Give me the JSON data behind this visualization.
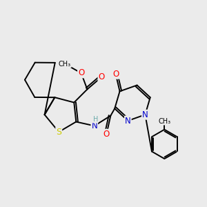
{
  "bg_color": "#ebebeb",
  "bond_color": "#000000",
  "bond_width": 1.4,
  "atom_colors": {
    "O": "#ff0000",
    "N": "#0000cc",
    "S": "#cccc00",
    "H": "#6aabab",
    "C": "#000000"
  },
  "font_size": 8.5,
  "fig_size": [
    3.0,
    3.0
  ],
  "dpi": 100
}
